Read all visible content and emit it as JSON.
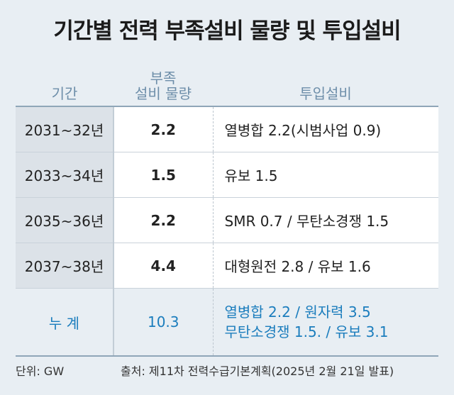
{
  "title": "기간별 전력 부족설비 물량 및 투입설비",
  "table": {
    "header": [
      "기간",
      [
        "부족",
        "설비 물량"
      ],
      "투입설비"
    ],
    "rows": [
      [
        "2031~32년",
        "2.2",
        "열병합 2.2(시범사업 0.9)"
      ],
      [
        "2033~34년",
        "1.5",
        "유보 1.5"
      ],
      [
        "2035~36년",
        "2.2",
        "SMR 0.7 / 무탄소경쟁 1.5"
      ],
      [
        "2037~38년",
        "4.4",
        "대형원전 2.8 / 유보 1.6"
      ]
    ],
    "total": [
      "누 계",
      "10.3",
      [
        "열병합 2.2 / 원자력 3.5",
        "무탄소경쟁 1.5. / 유보 3.1"
      ]
    ]
  },
  "footer": {
    "unit": "단위: GW",
    "source": "출처: 제11차 전력수급기본계획(2025년 2월 21일 발표)"
  }
}
